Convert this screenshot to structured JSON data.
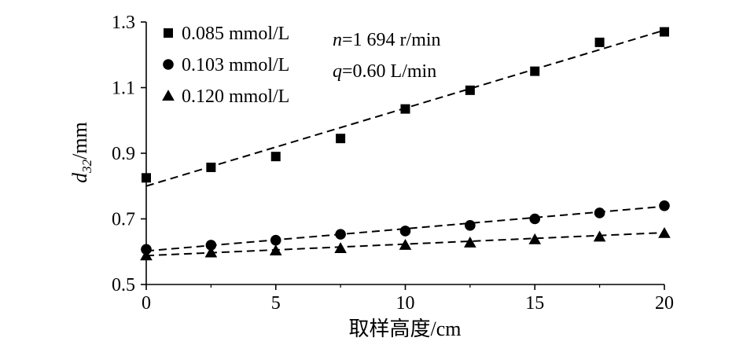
{
  "chart_data": {
    "type": "scatter",
    "xlabel": "取样高度/cm",
    "ylabel": {
      "base": "d",
      "subscript": "32",
      "suffix": "/mm"
    },
    "xlim": [
      0,
      20
    ],
    "ylim": [
      0.5,
      1.3
    ],
    "xticks": [
      "0",
      "5",
      "10",
      "15",
      "20"
    ],
    "yticks": [
      "0.5",
      "0.7",
      "0.9",
      "1.1",
      "1.3"
    ],
    "legend_position": "top-left",
    "annotations": [
      {
        "var": "n",
        "text": "=1 694 r/min"
      },
      {
        "var": "q",
        "text": "=0.60 L/min"
      }
    ],
    "series": [
      {
        "name": "0.085 mmol/L",
        "marker": "square",
        "x": [
          0,
          2.5,
          5,
          7.5,
          10,
          12.5,
          15,
          17.5,
          20
        ],
        "y": [
          0.825,
          0.857,
          0.89,
          0.945,
          1.035,
          1.092,
          1.15,
          1.238,
          1.27
        ],
        "fit": [
          [
            0,
            0.8
          ],
          [
            20,
            1.275
          ]
        ]
      },
      {
        "name": "0.103 mmol/L",
        "marker": "circle",
        "x": [
          0,
          2.5,
          5,
          7.5,
          10,
          12.5,
          15,
          17.5,
          20
        ],
        "y": [
          0.607,
          0.62,
          0.635,
          0.653,
          0.663,
          0.68,
          0.7,
          0.718,
          0.74
        ],
        "fit": [
          [
            0,
            0.602
          ],
          [
            20,
            0.738
          ]
        ]
      },
      {
        "name": "0.120 mmol/L",
        "marker": "triangle",
        "x": [
          0,
          2.5,
          5,
          7.5,
          10,
          12.5,
          15,
          17.5,
          20
        ],
        "y": [
          0.588,
          0.597,
          0.603,
          0.61,
          0.62,
          0.627,
          0.637,
          0.645,
          0.656
        ],
        "fit": [
          [
            0,
            0.588
          ],
          [
            20,
            0.658
          ]
        ]
      }
    ]
  }
}
